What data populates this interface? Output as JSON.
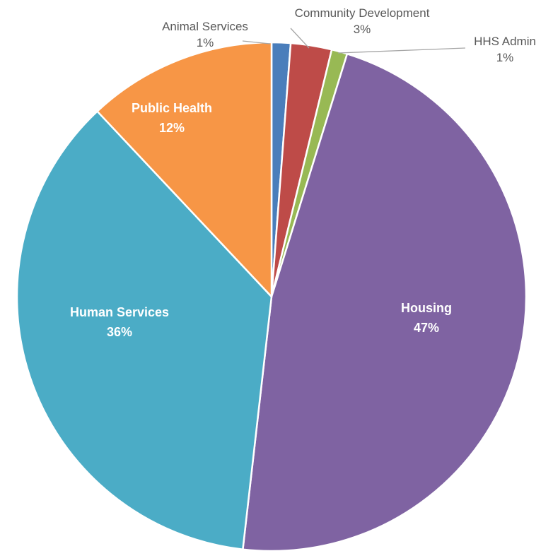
{
  "chart_data": {
    "type": "pie",
    "start_angle_deg": 0,
    "direction": "clockwise",
    "legend": "none",
    "slices": [
      {
        "name": "Animal Services",
        "value": 1.2,
        "label": "Animal Services",
        "pct_label": "1%",
        "color": "#4a7ebb",
        "label_placement": "outside"
      },
      {
        "name": "Community Development",
        "value": 2.6,
        "label": "Community Development",
        "pct_label": "3%",
        "color": "#be4b48",
        "label_placement": "outside"
      },
      {
        "name": "HHS Admin",
        "value": 1.0,
        "label": "HHS Admin",
        "pct_label": "1%",
        "color": "#98b954",
        "label_placement": "outside"
      },
      {
        "name": "Housing",
        "value": 47.0,
        "label": "Housing",
        "pct_label": "47%",
        "color": "#7f63a2",
        "label_placement": "inside"
      },
      {
        "name": "Human Services",
        "value": 36.2,
        "label": "Human Services",
        "pct_label": "36%",
        "color": "#4bacc6",
        "label_placement": "inside"
      },
      {
        "name": "Public Health",
        "value": 12.0,
        "label": "Public Health",
        "pct_label": "12%",
        "color": "#f79646",
        "label_placement": "inside"
      }
    ]
  }
}
